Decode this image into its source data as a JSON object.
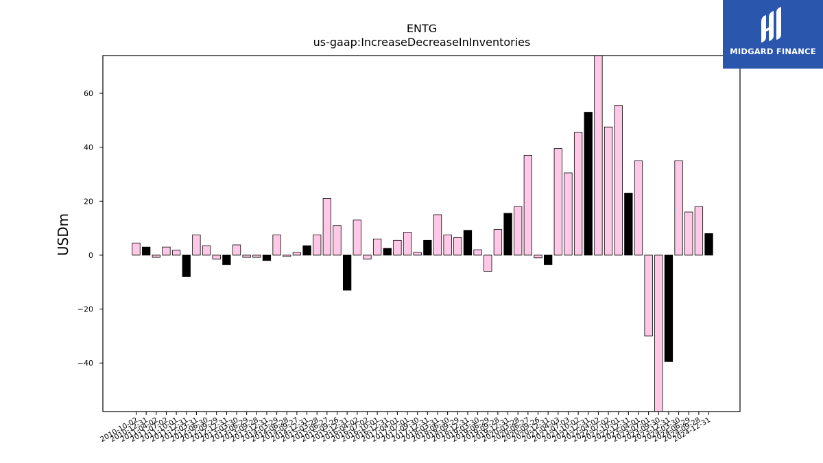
{
  "brand": {
    "name": "MIDGARD FINANCE",
    "color": "#2a56ad"
  },
  "chart_data": {
    "type": "bar",
    "title": "ENTG",
    "subtitle": "us-gaap:IncreaseDecreaseInInventories",
    "xlabel": "",
    "ylabel": "USDm",
    "ylim": [
      -58,
      74
    ],
    "yticks": [
      -40,
      -20,
      0,
      20,
      40,
      60
    ],
    "grid": false,
    "colors": {
      "quarter": "#ffc8e6",
      "year_end": "#000000",
      "edge": "#000000"
    },
    "categories": [
      "2010-10-02",
      "2010-12-31",
      "2011-04-02",
      "2011-07-02",
      "2011-10-01",
      "2011-12-31",
      "2012-03-31",
      "2012-06-30",
      "2012-09-29",
      "2012-12-31",
      "2013-03-30",
      "2013-06-29",
      "2013-09-28",
      "2013-12-31",
      "2014-03-29",
      "2014-06-28",
      "2014-09-27",
      "2014-12-31",
      "2015-03-28",
      "2015-06-27",
      "2015-09-26",
      "2015-12-31",
      "2016-04-02",
      "2016-07-02",
      "2016-10-01",
      "2016-12-31",
      "2017-04-01",
      "2017-07-01",
      "2017-09-30",
      "2017-12-31",
      "2018-03-31",
      "2018-06-30",
      "2018-09-29",
      "2018-12-31",
      "2019-03-30",
      "2019-06-29",
      "2019-09-28",
      "2019-12-31",
      "2020-03-28",
      "2020-06-27",
      "2020-09-26",
      "2020-12-31",
      "2021-04-03",
      "2021-07-03",
      "2021-10-02",
      "2021-12-31",
      "2022-04-02",
      "2022-07-02",
      "2022-10-01",
      "2022-12-31",
      "2023-04-01",
      "2023-07-01",
      "2023-09-30",
      "2023-12-31",
      "2024-03-30",
      "2024-06-29",
      "2024-09-28",
      "2024-12-31"
    ],
    "series": [
      {
        "values": [
          4.5,
          3.0,
          -0.8,
          3.0,
          1.8,
          -8.0,
          7.5,
          3.5,
          -1.5,
          -3.5,
          3.8,
          -0.8,
          -0.8,
          -2.0,
          7.5,
          -0.5,
          1.0,
          3.5,
          7.5,
          21.0,
          11.0,
          -13.0,
          13.0,
          -1.5,
          6.0,
          2.5,
          5.5,
          8.5,
          1.0,
          5.5,
          15.0,
          7.5,
          6.5,
          9.2,
          2.0,
          -6.0,
          9.5,
          15.5,
          18.0,
          37.0,
          -1.0,
          -3.5,
          39.5,
          30.5,
          45.5,
          53.0,
          74.0,
          47.5,
          55.5,
          23.0,
          35.0,
          -30.0,
          -58.0,
          -39.5,
          35.0,
          16.0,
          18.0,
          8.0
        ]
      }
    ]
  }
}
